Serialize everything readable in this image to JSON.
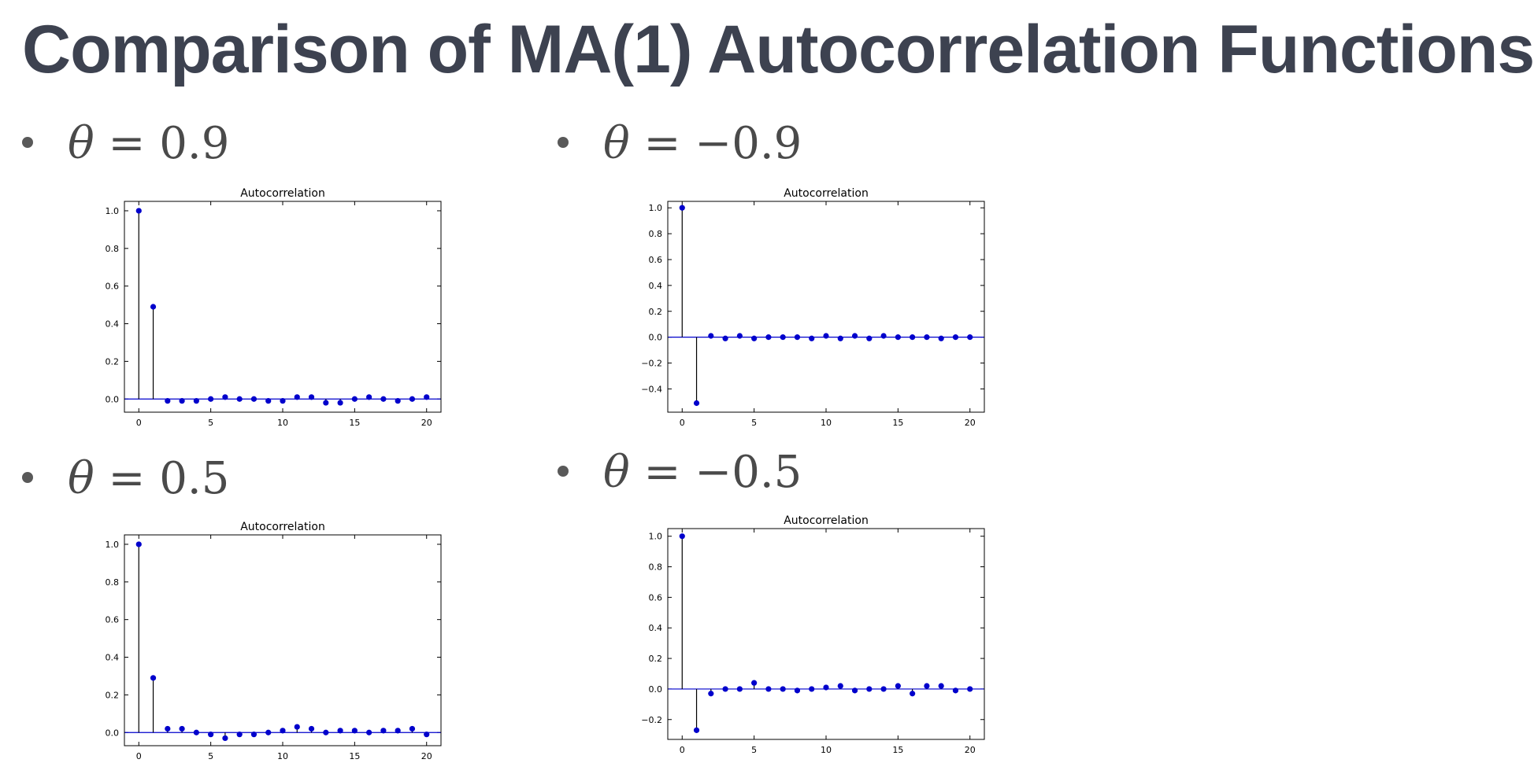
{
  "slide": {
    "title": "Comparison of MA(1) Autocorrelation Functions"
  },
  "panels": [
    {
      "bullet": {
        "symbol": "θ",
        "equals": "=",
        "value": "0.9"
      }
    },
    {
      "bullet": {
        "symbol": "θ",
        "equals": "=",
        "value": "−0.9"
      }
    },
    {
      "bullet": {
        "symbol": "θ",
        "equals": "=",
        "value": "0.5"
      }
    },
    {
      "bullet": {
        "symbol": "θ",
        "equals": "=",
        "value": "−0.5"
      }
    }
  ],
  "colors": {
    "marker": "#0000cc",
    "zero_line": "#0000cc",
    "stem": "#000000",
    "title_text": "#3d4250",
    "bullet_text": "#4a4a4a"
  },
  "chart_data": [
    {
      "type": "stem",
      "title": "Autocorrelation",
      "xlim": [
        -1,
        21
      ],
      "ylim": [
        -0.07,
        1.05
      ],
      "xticks": [
        0,
        5,
        10,
        15,
        20
      ],
      "xtick_labels": [
        "0",
        "5",
        "10",
        "15",
        "20"
      ],
      "yticks": [
        0.0,
        0.2,
        0.4,
        0.6,
        0.8,
        1.0
      ],
      "ytick_labels": [
        "0.0",
        "0.2",
        "0.4",
        "0.6",
        "0.8",
        "1.0"
      ],
      "x": [
        0,
        1,
        2,
        3,
        4,
        5,
        6,
        7,
        8,
        9,
        10,
        11,
        12,
        13,
        14,
        15,
        16,
        17,
        18,
        19,
        20
      ],
      "values": [
        1.0,
        0.49,
        -0.01,
        -0.01,
        -0.01,
        0.0,
        0.01,
        0.0,
        0.0,
        -0.01,
        -0.01,
        0.01,
        0.01,
        -0.02,
        -0.02,
        0.0,
        0.01,
        0.0,
        -0.01,
        0.0,
        0.01
      ]
    },
    {
      "type": "stem",
      "title": "Autocorrelation",
      "xlim": [
        -1,
        21
      ],
      "ylim": [
        -0.58,
        1.05
      ],
      "xticks": [
        0,
        5,
        10,
        15,
        20
      ],
      "xtick_labels": [
        "0",
        "5",
        "10",
        "15",
        "20"
      ],
      "yticks": [
        -0.4,
        -0.2,
        0.0,
        0.2,
        0.4,
        0.6,
        0.8,
        1.0
      ],
      "ytick_labels": [
        "−0.4",
        "−0.2",
        "0.0",
        "0.2",
        "0.4",
        "0.6",
        "0.8",
        "1.0"
      ],
      "x": [
        0,
        1,
        2,
        3,
        4,
        5,
        6,
        7,
        8,
        9,
        10,
        11,
        12,
        13,
        14,
        15,
        16,
        17,
        18,
        19,
        20
      ],
      "values": [
        1.0,
        -0.51,
        0.01,
        -0.01,
        0.01,
        -0.01,
        0.0,
        0.0,
        0.0,
        -0.01,
        0.01,
        -0.01,
        0.01,
        -0.01,
        0.01,
        0.0,
        0.0,
        0.0,
        -0.01,
        0.0,
        0.0
      ]
    },
    {
      "type": "stem",
      "title": "Autocorrelation",
      "xlim": [
        -1,
        21
      ],
      "ylim": [
        -0.07,
        1.05
      ],
      "xticks": [
        0,
        5,
        10,
        15,
        20
      ],
      "xtick_labels": [
        "0",
        "5",
        "10",
        "15",
        "20"
      ],
      "yticks": [
        0.0,
        0.2,
        0.4,
        0.6,
        0.8,
        1.0
      ],
      "ytick_labels": [
        "0.0",
        "0.2",
        "0.4",
        "0.6",
        "0.8",
        "1.0"
      ],
      "x": [
        0,
        1,
        2,
        3,
        4,
        5,
        6,
        7,
        8,
        9,
        10,
        11,
        12,
        13,
        14,
        15,
        16,
        17,
        18,
        19,
        20
      ],
      "values": [
        1.0,
        0.29,
        0.02,
        0.02,
        0.0,
        -0.01,
        -0.03,
        -0.01,
        -0.01,
        0.0,
        0.01,
        0.03,
        0.02,
        0.0,
        0.01,
        0.01,
        0.0,
        0.01,
        0.01,
        0.02,
        -0.01
      ]
    },
    {
      "type": "stem",
      "title": "Autocorrelation",
      "xlim": [
        -1,
        21
      ],
      "ylim": [
        -0.33,
        1.05
      ],
      "xticks": [
        0,
        5,
        10,
        15,
        20
      ],
      "xtick_labels": [
        "0",
        "5",
        "10",
        "15",
        "20"
      ],
      "yticks": [
        -0.2,
        0.0,
        0.2,
        0.4,
        0.6,
        0.8,
        1.0
      ],
      "ytick_labels": [
        "−0.2",
        "0.0",
        "0.2",
        "0.4",
        "0.6",
        "0.8",
        "1.0"
      ],
      "x": [
        0,
        1,
        2,
        3,
        4,
        5,
        6,
        7,
        8,
        9,
        10,
        11,
        12,
        13,
        14,
        15,
        16,
        17,
        18,
        19,
        20
      ],
      "values": [
        1.0,
        -0.27,
        -0.03,
        0.0,
        0.0,
        0.04,
        0.0,
        0.0,
        -0.01,
        0.0,
        0.01,
        0.02,
        -0.01,
        0.0,
        0.0,
        0.02,
        -0.03,
        0.02,
        0.02,
        -0.01,
        0.0
      ]
    }
  ]
}
